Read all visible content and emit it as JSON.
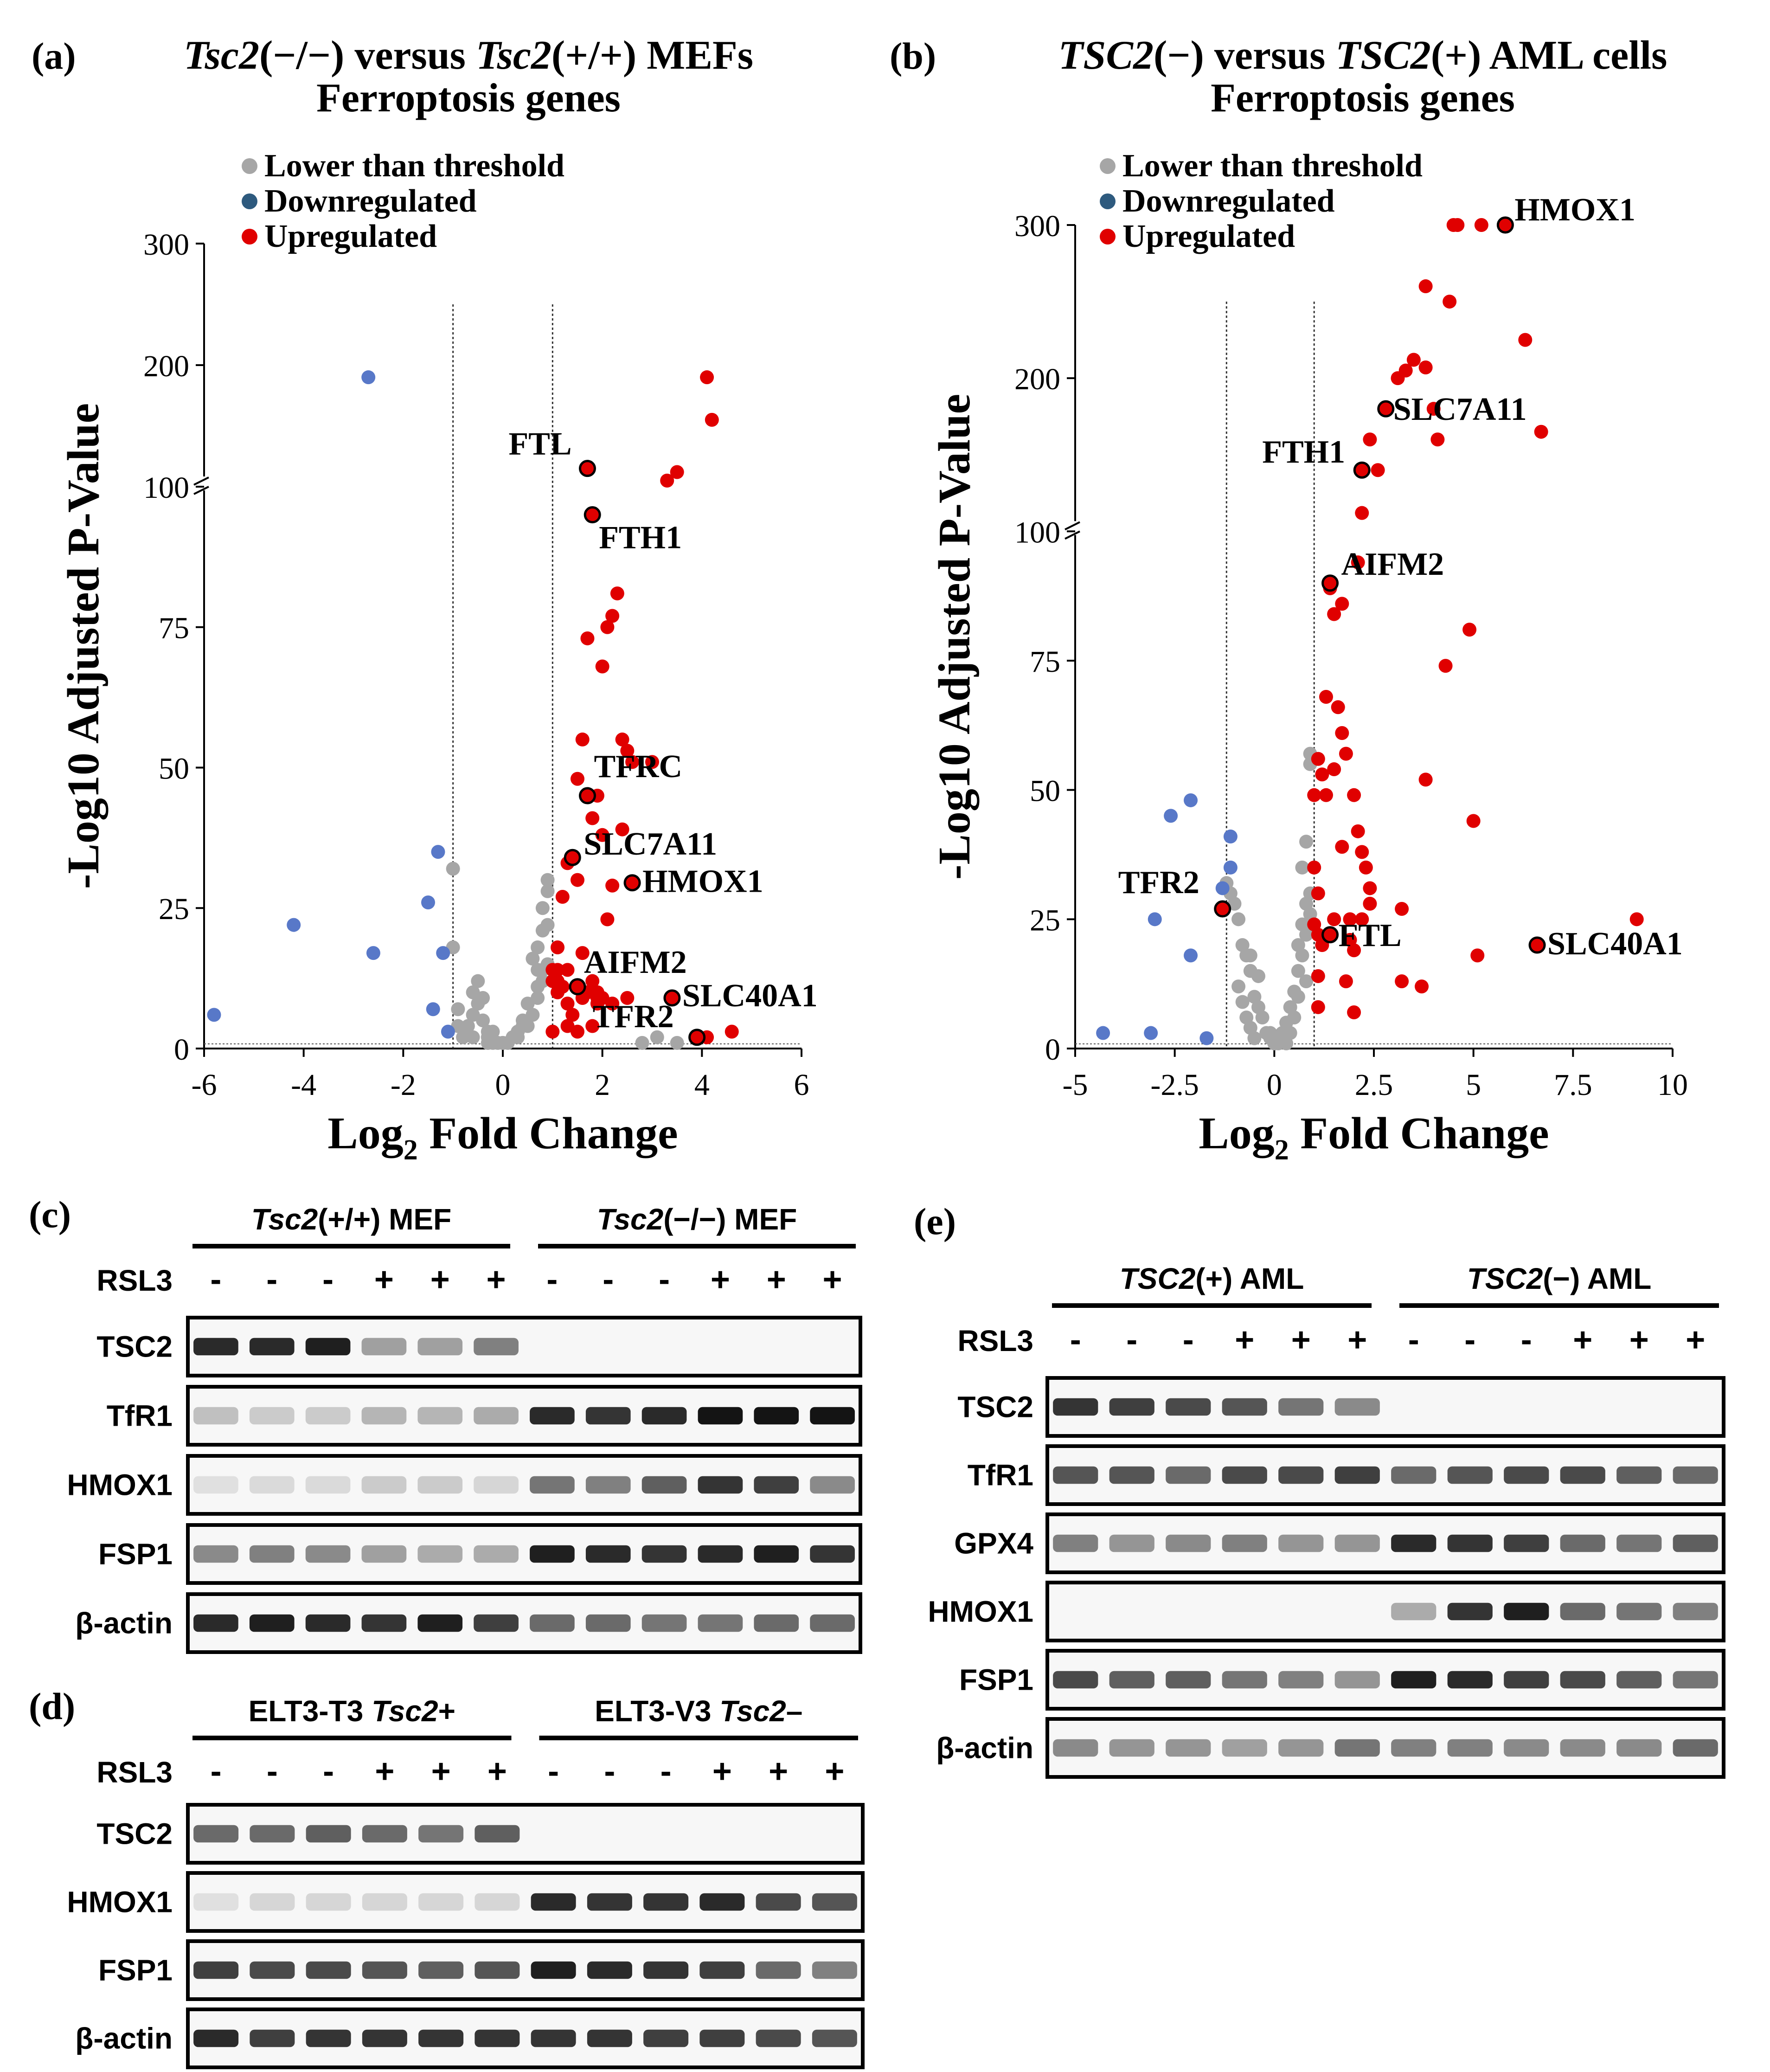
{
  "chart_data": [
    {
      "panel": "(a)",
      "type": "scatter",
      "title_parts": [
        {
          "text": "Tsc2",
          "italic": true
        },
        {
          "text": "(−/−) versus ",
          "italic": false
        },
        {
          "text": "Tsc2",
          "italic": true
        },
        {
          "text": "(+/+) MEFs",
          "italic": false
        }
      ],
      "subtitle": "Ferroptosis genes",
      "xlabel_main": "Log",
      "xlabel_sub": "2",
      "xlabel_rest": " Fold Change",
      "ylabel": "-Log10 Adjusted P-Value",
      "xlim": [
        -6,
        6
      ],
      "xticks": [
        -6,
        -4,
        -2,
        0,
        2,
        4,
        6
      ],
      "ylim": [
        0,
        300
      ],
      "ybreak": 100,
      "yticks": [
        0,
        25,
        50,
        75,
        100,
        200,
        300
      ],
      "threshold_x": [
        -1,
        1
      ],
      "legend": [
        {
          "label": "Lower than threshold",
          "color": "#a6a6a6"
        },
        {
          "label": "Downregulated",
          "color": "#2e5a7e"
        },
        {
          "label": "Upregulated",
          "color": "#e00000"
        }
      ],
      "colors": {
        "gray": "#a6a6a6",
        "down": "#5878c8",
        "up": "#e00000"
      },
      "series": [
        {
          "group": "down",
          "x": [
            -5.8,
            -4.2,
            -2.6,
            -1.5,
            -1.4,
            -1.3,
            -1.2,
            -1.1,
            -2.7
          ],
          "y": [
            6,
            22,
            17,
            26,
            7,
            35,
            17,
            3,
            190
          ]
        },
        {
          "group": "up",
          "x": [
            1.0,
            1.1,
            1.2,
            1.3,
            1.4,
            1.5,
            1.6,
            1.7,
            1.8,
            1.9,
            2.0,
            2.1,
            2.2,
            2.3,
            2.4,
            2.5,
            2.6,
            2.2,
            2.0,
            1.6,
            1.8,
            1.9,
            2.4,
            2.1,
            1.5,
            1.4,
            1.2,
            1.1,
            1.6,
            1.1,
            1.0,
            1.3,
            1.9,
            2.5,
            3.0,
            3.3,
            3.5,
            4.1,
            4.2,
            1.7,
            1.0,
            1.1,
            1.4,
            2.0,
            2.2,
            1.9,
            1.8,
            1.5,
            1.3,
            4.6,
            4.1,
            1.3
          ],
          "y": [
            14,
            10,
            11,
            8,
            6,
            3,
            9,
            10,
            12,
            8,
            68,
            75,
            77,
            81,
            55,
            53,
            51,
            29,
            38,
            17,
            41,
            45,
            39,
            23,
            48,
            34,
            27,
            18,
            55,
            12,
            12,
            33,
            9,
            9,
            51,
            105,
            112,
            190,
            155,
            73,
            3,
            14,
            34,
            9,
            8,
            10,
            4,
            30,
            14,
            3,
            2,
            4
          ]
        },
        {
          "group": "gray",
          "x": [
            -0.8,
            -0.7,
            -0.6,
            -0.5,
            -0.4,
            -0.3,
            -0.2,
            -0.1,
            0,
            0.1,
            0.2,
            0.3,
            0.4,
            0.5,
            0.6,
            0.7,
            0.8,
            0.9,
            -0.9,
            -0.6,
            -0.5,
            -0.4,
            -0.3,
            -0.2,
            0.2,
            0.3,
            0.5,
            0.7,
            0.8,
            0.9,
            0.9,
            0.8,
            0.7,
            0.6,
            -1.0,
            -1.0,
            -0.9,
            0.9,
            0.8,
            0.7,
            0.4,
            0.3,
            0.0,
            -0.3,
            -0.6,
            2.8,
            3.1,
            3.5
          ],
          "y": [
            2,
            4,
            6,
            8,
            9,
            3,
            1,
            1,
            1,
            1,
            2,
            3,
            5,
            4,
            6,
            9,
            12,
            15,
            7,
            10,
            12,
            5,
            2,
            3,
            2,
            3,
            8,
            11,
            14,
            22,
            28,
            25,
            18,
            16,
            32,
            18,
            4,
            30,
            21,
            14,
            4,
            2,
            1,
            1,
            2,
            1,
            2,
            1
          ]
        }
      ],
      "labels": [
        {
          "text": "FTL",
          "x": 1.7,
          "y": 115
        },
        {
          "text": "FTH1",
          "x": 1.8,
          "y": 95
        },
        {
          "text": "TFRC",
          "x": 1.7,
          "y": 45
        },
        {
          "text": "SLC7A11",
          "x": 1.4,
          "y": 34
        },
        {
          "text": "HMOX1",
          "x": 2.6,
          "y": 29.5
        },
        {
          "text": "AIFM2",
          "x": 1.5,
          "y": 11
        },
        {
          "text": "SLC40A1",
          "x": 3.4,
          "y": 9
        },
        {
          "text": "TFR2",
          "x": 3.9,
          "y": 2
        }
      ]
    },
    {
      "panel": "(b)",
      "type": "scatter",
      "title_parts": [
        {
          "text": "TSC2",
          "italic": true
        },
        {
          "text": "(−) versus ",
          "italic": false
        },
        {
          "text": "TSC2",
          "italic": true
        },
        {
          "text": "(+) AML cells",
          "italic": false
        }
      ],
      "subtitle": "Ferroptosis genes",
      "xlabel_main": "Log",
      "xlabel_sub": "2",
      "xlabel_rest": " Fold Change",
      "ylabel": "-Log10 Adjusted P-Value",
      "xlim": [
        -5,
        10
      ],
      "xticks": [
        -5,
        -2.5,
        0,
        2.5,
        5,
        7.5,
        10
      ],
      "ylim": [
        0,
        300
      ],
      "ybreak": 100,
      "yticks": [
        0,
        25,
        50,
        75,
        100,
        200,
        300
      ],
      "threshold_x": [
        -1.2,
        1.0
      ],
      "legend": [
        {
          "label": "Lower than threshold",
          "color": "#a6a6a6"
        },
        {
          "label": "Downregulated",
          "color": "#2e5a7e"
        },
        {
          "label": "Upregulated",
          "color": "#e00000"
        }
      ],
      "colors": {
        "gray": "#a6a6a6",
        "down": "#5878c8",
        "up": "#e00000"
      },
      "series": [
        {
          "group": "down",
          "x": [
            -4.3,
            -3.1,
            -2.6,
            -1.7,
            -3.0,
            -2.1,
            -1.3,
            -1.1,
            -2.1,
            -1.1
          ],
          "y": [
            3,
            3,
            45,
            2,
            25,
            18,
            31,
            35,
            48,
            41
          ]
        },
        {
          "group": "up",
          "x": [
            1.2,
            1.5,
            1.8,
            2.0,
            2.1,
            2.2,
            2.3,
            2.4,
            1.9,
            1.7,
            1.6,
            1.3,
            1.1,
            1.0,
            1.2,
            1.7,
            2.0,
            1.1,
            1.1,
            1.8,
            2.0,
            1.0,
            1.1,
            1.5,
            1.9,
            2.2,
            2.4,
            3.2,
            3.2,
            3.7,
            3.8,
            4.3,
            4.9,
            5.0,
            5.1,
            3.1,
            3.3,
            3.5,
            3.8,
            4.0,
            4.1,
            4.5,
            4.6,
            5.2,
            6.3,
            6.7,
            4.4,
            3.8,
            2.4,
            2.6,
            2.2,
            2.1,
            1.7,
            1.5,
            9.1,
            1.4,
            1.3,
            1.0,
            1.1
          ],
          "y": [
            53,
            54,
            57,
            49,
            42,
            38,
            35,
            31,
            25,
            61,
            66,
            68,
            56,
            49,
            20,
            39,
            19,
            14,
            8,
            13,
            7,
            24,
            22,
            25,
            21,
            25,
            28,
            27,
            13,
            12,
            52,
            74,
            81,
            44,
            18,
            200,
            205,
            212,
            207,
            180,
            160,
            300,
            300,
            300,
            225,
            165,
            250,
            260,
            160,
            140,
            112,
            94,
            86,
            84,
            25,
            89,
            49,
            35,
            30
          ]
        },
        {
          "group": "gray",
          "x": [
            -1.2,
            -1.1,
            -1.0,
            -0.9,
            -0.8,
            -0.7,
            -0.6,
            -0.5,
            -0.4,
            -0.3,
            -0.2,
            -0.1,
            0,
            0.1,
            0.2,
            0.3,
            0.4,
            0.5,
            0.6,
            0.7,
            0.8,
            0.9,
            0.9,
            0.8,
            0.7,
            0.6,
            -0.9,
            -0.8,
            -0.7,
            -0.6,
            -0.5,
            0.3,
            0.4,
            0.5,
            0.6,
            0.8,
            0.8,
            0.7,
            0.9,
            0.9,
            -0.4,
            -0.6,
            0.2,
            0.1,
            0.0,
            -0.1
          ],
          "y": [
            32,
            30,
            28,
            25,
            20,
            18,
            15,
            10,
            8,
            6,
            3,
            2,
            1,
            2,
            3,
            5,
            8,
            11,
            15,
            18,
            22,
            26,
            30,
            28,
            24,
            20,
            12,
            9,
            6,
            4,
            2,
            1,
            3,
            6,
            10,
            13,
            40,
            35,
            57,
            55,
            14,
            18,
            2,
            1,
            1,
            3
          ]
        }
      ],
      "labels": [
        {
          "text": "HMOX1",
          "x": 5.8,
          "y": 300
        },
        {
          "text": "SLC7A11",
          "x": 2.8,
          "y": 180
        },
        {
          "text": "FTH1",
          "x": 2.2,
          "y": 140
        },
        {
          "text": "AIFM2",
          "x": 1.4,
          "y": 90
        },
        {
          "text": "TFR2",
          "x": -1.3,
          "y": 27
        },
        {
          "text": "FTL",
          "x": 1.4,
          "y": 22
        },
        {
          "text": "SLC40A1",
          "x": 6.6,
          "y": 20
        }
      ]
    }
  ],
  "blots": [
    {
      "panel": "(c)",
      "group1": {
        "name": "Tsc2",
        "suffix": "(+/+) MEF"
      },
      "group2": {
        "name": "Tsc2",
        "suffix": "(−/−) MEF"
      },
      "treatment_label": "RSL3",
      "treatment": [
        "-",
        "-",
        "-",
        "+",
        "+",
        "+",
        "-",
        "-",
        "-",
        "+",
        "+",
        "+"
      ],
      "rows": [
        {
          "label": "TSC2",
          "intensity": [
            0.9,
            0.9,
            0.95,
            0.35,
            0.35,
            0.5,
            0,
            0,
            0,
            0,
            0,
            0
          ]
        },
        {
          "label": "TfR1",
          "intensity": [
            0.2,
            0.15,
            0.15,
            0.25,
            0.25,
            0.3,
            0.9,
            0.85,
            0.9,
            1.0,
            1.0,
            1.0
          ]
        },
        {
          "label": "HMOX1",
          "intensity": [
            0.05,
            0.08,
            0.08,
            0.15,
            0.15,
            0.1,
            0.55,
            0.5,
            0.65,
            0.85,
            0.8,
            0.45
          ]
        },
        {
          "label": "FSP1",
          "intensity": [
            0.45,
            0.5,
            0.45,
            0.35,
            0.3,
            0.3,
            0.95,
            0.9,
            0.85,
            0.9,
            0.95,
            0.85
          ]
        },
        {
          "label": "β-actin",
          "intensity": [
            0.9,
            0.95,
            0.9,
            0.85,
            0.95,
            0.8,
            0.6,
            0.6,
            0.55,
            0.55,
            0.6,
            0.6
          ]
        }
      ]
    },
    {
      "panel": "(d)",
      "group1": {
        "name": "ELT3-T3 ",
        "italic_name": "Tsc2",
        "suffix": "+"
      },
      "group2": {
        "name": "ELT3-V3 ",
        "italic_name": "Tsc2",
        "suffix": "–"
      },
      "treatment_label": "RSL3",
      "treatment": [
        "-",
        "-",
        "-",
        "+",
        "+",
        "+",
        "-",
        "-",
        "-",
        "+",
        "+",
        "+"
      ],
      "rows": [
        {
          "label": "TSC2",
          "intensity": [
            0.6,
            0.6,
            0.65,
            0.6,
            0.55,
            0.65,
            0,
            0,
            0,
            0,
            0,
            0
          ]
        },
        {
          "label": "HMOX1",
          "intensity": [
            0.05,
            0.1,
            0.1,
            0.1,
            0.1,
            0.1,
            0.9,
            0.85,
            0.85,
            0.9,
            0.75,
            0.7
          ]
        },
        {
          "label": "FSP1",
          "intensity": [
            0.8,
            0.75,
            0.75,
            0.7,
            0.65,
            0.7,
            0.95,
            0.9,
            0.85,
            0.8,
            0.6,
            0.5
          ]
        },
        {
          "label": "β-actin",
          "intensity": [
            0.9,
            0.8,
            0.85,
            0.85,
            0.85,
            0.85,
            0.85,
            0.85,
            0.8,
            0.8,
            0.75,
            0.7
          ]
        }
      ]
    },
    {
      "panel": "(e)",
      "group1": {
        "name": "TSC2",
        "suffix": "(+) AML"
      },
      "group2": {
        "name": "TSC2",
        "suffix": "(−) AML"
      },
      "treatment_label": "RSL3",
      "treatment": [
        "-",
        "-",
        "-",
        "+",
        "+",
        "+",
        "-",
        "-",
        "-",
        "+",
        "+",
        "+"
      ],
      "rows": [
        {
          "label": "TSC2",
          "intensity": [
            0.85,
            0.8,
            0.75,
            0.7,
            0.55,
            0.45,
            0,
            0,
            0,
            0,
            0,
            0
          ]
        },
        {
          "label": "TfR1",
          "intensity": [
            0.7,
            0.7,
            0.6,
            0.75,
            0.75,
            0.8,
            0.6,
            0.7,
            0.75,
            0.75,
            0.65,
            0.6
          ]
        },
        {
          "label": "GPX4",
          "intensity": [
            0.5,
            0.4,
            0.45,
            0.5,
            0.4,
            0.4,
            0.9,
            0.85,
            0.8,
            0.6,
            0.55,
            0.65
          ]
        },
        {
          "label": "HMOX1",
          "intensity": [
            0,
            0,
            0,
            0,
            0,
            0,
            0.3,
            0.85,
            0.95,
            0.6,
            0.55,
            0.5
          ]
        },
        {
          "label": "FSP1",
          "intensity": [
            0.75,
            0.65,
            0.65,
            0.55,
            0.5,
            0.4,
            0.95,
            0.9,
            0.8,
            0.75,
            0.65,
            0.55
          ]
        },
        {
          "label": "β-actin",
          "intensity": [
            0.45,
            0.4,
            0.4,
            0.35,
            0.4,
            0.55,
            0.5,
            0.5,
            0.45,
            0.45,
            0.45,
            0.6
          ]
        }
      ]
    }
  ]
}
